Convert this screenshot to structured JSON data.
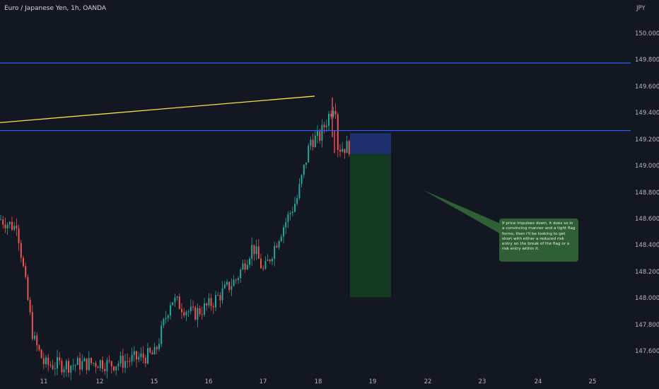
{
  "header": {
    "symbol_title": "Euro / Japanese Yen, 1h, OANDA",
    "currency": "JPY"
  },
  "annotation": {
    "text": "If price impulses down, it does so in a convincing manner and a tight flag forms, then i'll be looking to get short with either a reduced risk entry on the break of the flag or a risk entry within it."
  },
  "colors": {
    "background": "#131722",
    "bull": "#26a69a",
    "bear": "#ef5350",
    "horizontal_line": "#2962ff",
    "trendline": "#f5e04a",
    "risk_zone": "#1e3270",
    "reward_zone": "#143b22",
    "note_bg": "#2e5f35"
  },
  "chart_data": {
    "type": "candlestick",
    "title": "Euro / Japanese Yen, 1h, OANDA",
    "y_unit": "JPY",
    "ylim": [
      147.46,
      150.32
    ],
    "y_ticks": [
      "150.000",
      "149.800",
      "149.600",
      "149.400",
      "149.200",
      "149.000",
      "148.800",
      "148.600",
      "148.400",
      "148.200",
      "148.000",
      "147.800",
      "147.600"
    ],
    "x_ticks": [
      "11",
      "12",
      "15",
      "16",
      "17",
      "18",
      "19",
      "22",
      "23",
      "24",
      "25"
    ],
    "price_anchors": [
      {
        "day": 10.5,
        "price": 148.6
      },
      {
        "day": 10.8,
        "price": 147.7
      },
      {
        "day": 11.0,
        "price": 147.5
      },
      {
        "day": 11.5,
        "price": 147.5
      },
      {
        "day": 12.0,
        "price": 147.52
      },
      {
        "day": 12.5,
        "price": 147.5
      },
      {
        "day": 15.0,
        "price": 147.58
      },
      {
        "day": 15.3,
        "price": 148.0
      },
      {
        "day": 15.7,
        "price": 147.88
      },
      {
        "day": 16.0,
        "price": 147.95
      },
      {
        "day": 16.5,
        "price": 148.15
      },
      {
        "day": 16.8,
        "price": 148.4
      },
      {
        "day": 17.0,
        "price": 148.2
      },
      {
        "day": 17.3,
        "price": 148.5
      },
      {
        "day": 17.6,
        "price": 148.75
      },
      {
        "day": 17.85,
        "price": 149.2
      },
      {
        "day": 18.0,
        "price": 149.21
      },
      {
        "day": 18.3,
        "price": 149.5
      },
      {
        "day": 18.35,
        "price": 149.14
      },
      {
        "day": 18.6,
        "price": 149.15
      }
    ],
    "horizontal_lines": [
      149.78,
      149.27
    ],
    "trendline": {
      "from": {
        "day": 10.0,
        "price": 149.33
      },
      "to": {
        "day": 18.0,
        "price": 149.53
      }
    },
    "position": {
      "from_day": 18.62,
      "to_day": 19.0,
      "entry": 149.09,
      "stop": 149.25,
      "target": 148.01
    },
    "grid": false,
    "legend": "none"
  }
}
